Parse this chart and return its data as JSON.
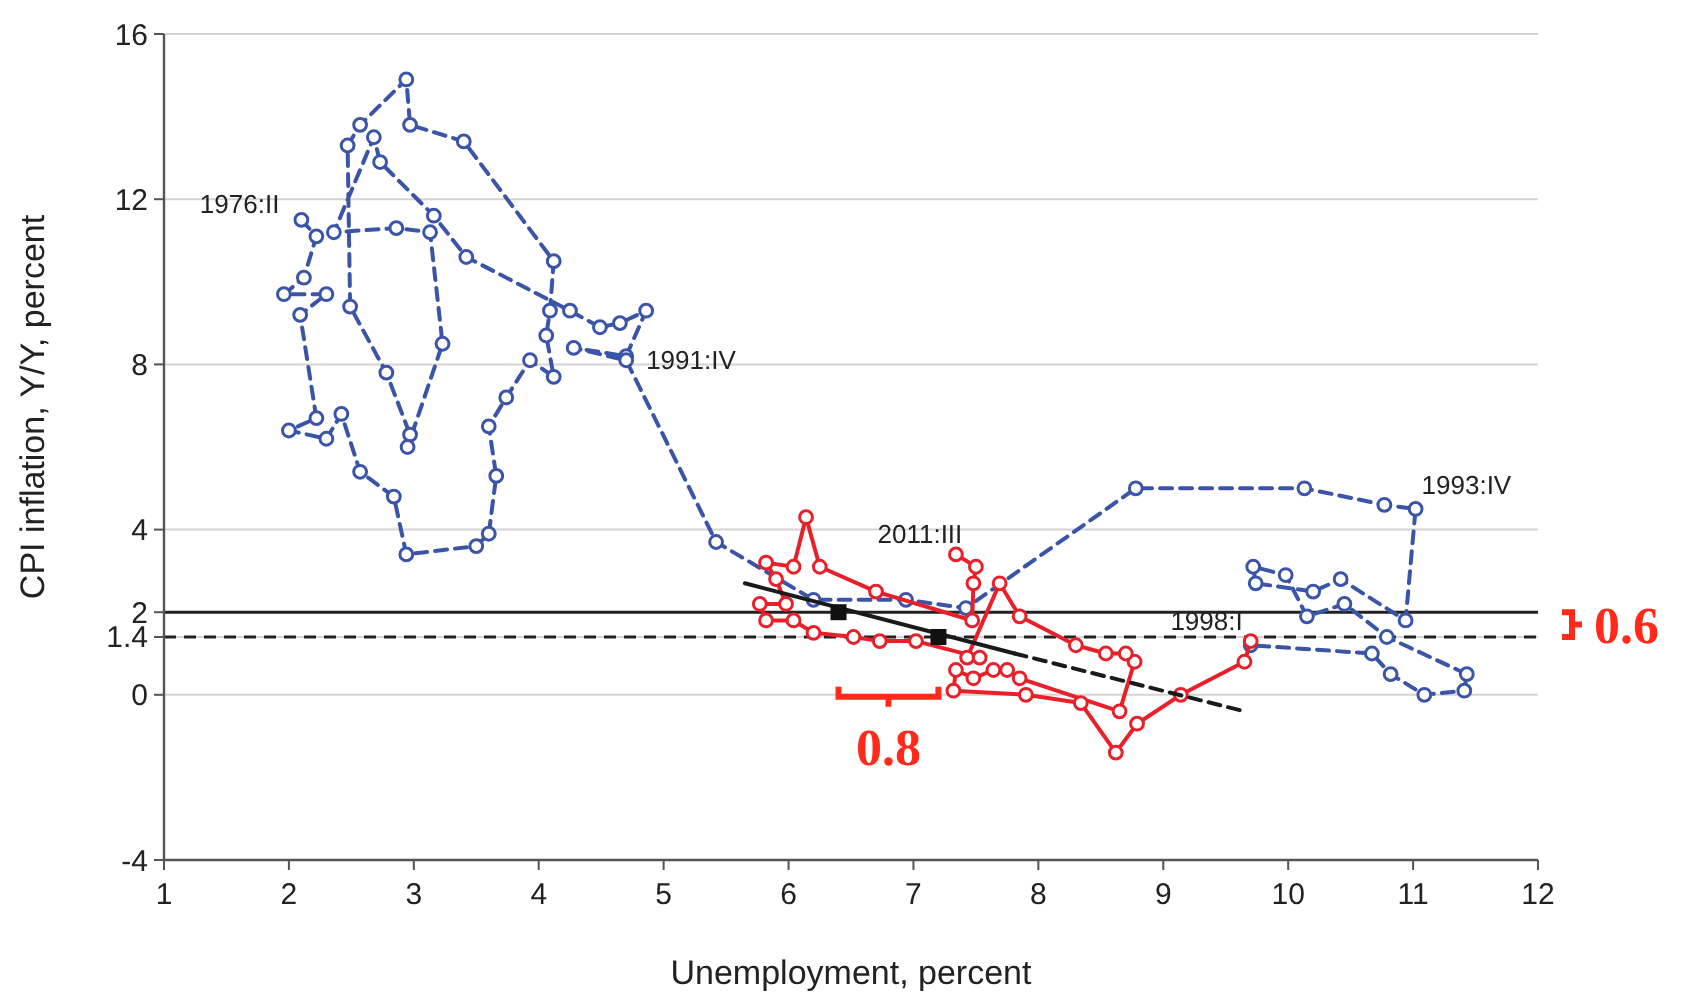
{
  "chart_data": {
    "type": "line",
    "xlabel": "Unemployment, percent",
    "ylabel": "CPI inflation, Y/Y, percent",
    "xlim": [
      1,
      12
    ],
    "xticks": [
      1,
      2,
      3,
      4,
      5,
      6,
      7,
      8,
      9,
      10,
      11,
      12
    ],
    "ylim": [
      -4,
      16
    ],
    "yticks": [
      -4,
      0,
      1.4,
      2,
      4,
      8,
      12,
      16
    ],
    "grid": "y",
    "series": [
      {
        "color": "#3a55a8",
        "marker": "circle",
        "line_style": "dashed",
        "x": [
          2.1,
          2.22,
          2.12,
          1.96,
          2.3,
          2.09,
          2.22,
          2.0,
          2.3,
          2.42,
          2.57,
          2.84,
          2.94,
          3.5,
          3.6,
          3.66,
          3.6,
          3.74,
          3.93,
          4.12,
          4.06,
          4.09,
          4.12,
          3.4,
          2.97,
          2.94,
          2.57,
          2.47,
          2.49,
          2.78,
          2.97,
          2.95,
          3.23,
          3.13,
          2.86,
          2.36,
          2.68,
          2.73,
          3.16,
          3.42,
          4.25,
          4.49,
          4.65,
          4.86,
          4.7,
          4.28,
          4.7,
          5.42,
          6.2,
          6.94,
          7.42,
          8.78,
          10.13,
          10.77,
          11.02,
          10.94,
          10.42,
          10.2,
          9.74,
          9.72,
          9.98,
          10.15,
          10.45,
          10.79,
          11.43,
          11.41,
          11.09,
          10.82,
          10.67,
          9.7
        ],
        "values": [
          11.5,
          11.1,
          10.1,
          9.7,
          9.7,
          9.2,
          6.7,
          6.4,
          6.2,
          6.8,
          5.4,
          4.8,
          3.4,
          3.6,
          3.9,
          5.3,
          6.5,
          7.2,
          8.1,
          7.7,
          8.7,
          9.3,
          10.5,
          13.4,
          13.8,
          14.9,
          13.8,
          13.3,
          9.4,
          7.8,
          6.3,
          6.0,
          8.5,
          11.2,
          11.3,
          11.2,
          13.5,
          12.9,
          11.6,
          10.6,
          9.3,
          8.9,
          9.0,
          9.3,
          8.2,
          8.4,
          8.1,
          3.7,
          2.3,
          2.3,
          2.1,
          5.0,
          5.0,
          4.6,
          4.5,
          1.8,
          2.8,
          2.5,
          2.7,
          3.1,
          2.9,
          1.9,
          2.2,
          1.4,
          0.5,
          0.1,
          0.0,
          0.5,
          1.0,
          1.2
        ]
      },
      {
        "color": "#e8202a",
        "marker": "circle",
        "line_style": "solid",
        "x": [
          9.7,
          9.65,
          9.14,
          8.79,
          8.62,
          8.34,
          7.9,
          7.32,
          7.34,
          7.48,
          7.64,
          7.75,
          7.85,
          8.65,
          8.77,
          8.7,
          8.54,
          8.3,
          7.85,
          7.69,
          7.43,
          7.53,
          7.02,
          6.73,
          6.52,
          6.2,
          6.04,
          5.82,
          5.77,
          5.98,
          5.9,
          5.82,
          6.04,
          6.14,
          6.25,
          6.7,
          7.47,
          7.48,
          7.5,
          7.34
        ],
        "values": [
          1.3,
          0.8,
          0.0,
          -0.7,
          -1.4,
          -0.2,
          0.0,
          0.1,
          0.6,
          0.4,
          0.6,
          0.6,
          0.4,
          -0.4,
          0.8,
          1.0,
          1.0,
          1.2,
          1.9,
          2.7,
          0.9,
          0.9,
          1.3,
          1.3,
          1.4,
          1.5,
          1.8,
          1.8,
          2.2,
          2.2,
          2.8,
          3.2,
          3.1,
          4.3,
          3.1,
          2.5,
          1.8,
          2.7,
          3.1,
          3.4
        ]
      },
      {
        "type": "line",
        "color": "#1a1a1a",
        "marker": "none",
        "line_style": "solid",
        "x": [
          5.65,
          7.81
        ],
        "values": [
          2.7,
          1.0
        ]
      },
      {
        "type": "line",
        "color": "#1a1a1a",
        "marker": "none",
        "line_style": "dashed",
        "x": [
          7.81,
          9.65
        ],
        "values": [
          1.0,
          -0.4
        ]
      },
      {
        "type": "scatter",
        "color": "#111111",
        "marker": "square",
        "x": [
          6.4,
          7.2
        ],
        "values": [
          2.0,
          1.4
        ]
      }
    ],
    "ref_lines": [
      {
        "axis": "y",
        "value": 2,
        "color": "#222222",
        "line_style": "solid"
      },
      {
        "axis": "y",
        "value": 1.4,
        "color": "#222222",
        "line_style": "dashed"
      }
    ],
    "annotations": [
      {
        "text": "1976:II",
        "x": 2.1,
        "y": 11.5
      },
      {
        "text": "1991:IV",
        "x": 4.7,
        "y": 8.1
      },
      {
        "text": "1993:IV",
        "x": 11.02,
        "y": 4.5
      },
      {
        "text": "2011:III",
        "x": 7.34,
        "y": 3.4
      },
      {
        "text": "1998:I",
        "x": 9.7,
        "y": 1.3
      },
      "0.8",
      "0.6"
    ]
  }
}
